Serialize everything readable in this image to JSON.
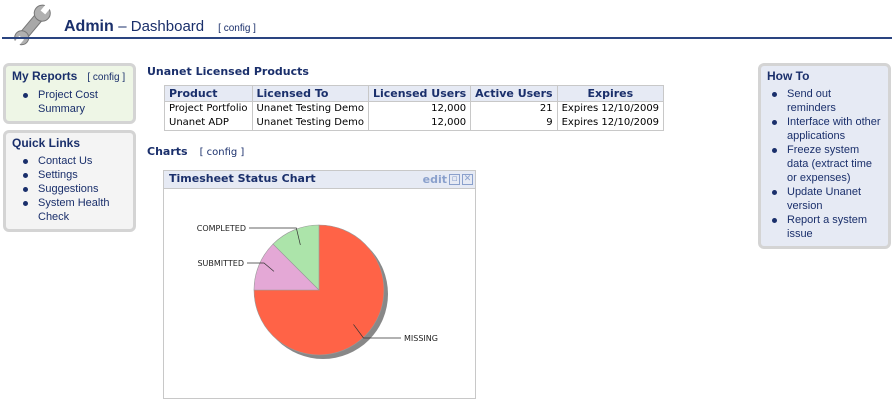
{
  "header": {
    "title_bold": "Admin",
    "title_rest": "– Dashboard",
    "config": "[ config ]"
  },
  "my_reports": {
    "title": "My Reports",
    "config": "[ config ]",
    "items": [
      "Project Cost Summary"
    ]
  },
  "quick_links": {
    "title": "Quick Links",
    "items": [
      "Contact Us",
      "Settings",
      "Suggestions",
      "System Health Check"
    ]
  },
  "how_to": {
    "title": "How To",
    "items": [
      "Send out reminders",
      "Interface with other applications",
      "Freeze system data (extract time or expenses)",
      "Update Unanet version",
      "Report a system issue"
    ]
  },
  "licensed": {
    "title": "Unanet Licensed Products",
    "columns": [
      "Product",
      "Licensed To",
      "Licensed Users",
      "Active Users",
      "Expires"
    ],
    "rows": [
      [
        "Project Portfolio",
        "Unanet Testing Demo",
        "12,000",
        "21",
        "Expires 12/10/2009"
      ],
      [
        "Unanet ADP",
        "Unanet Testing Demo",
        "12,000",
        "9",
        "Expires 12/10/2009"
      ]
    ]
  },
  "charts": {
    "title": "Charts",
    "config": "[ config ]",
    "panel_title": "Timesheet Status Chart",
    "edit": "edit"
  },
  "chart_data": {
    "type": "pie",
    "title": "Timesheet Status Chart",
    "slices": [
      {
        "label": "MISSING",
        "value": 75,
        "color": "#ff6347"
      },
      {
        "label": "SUBMITTED",
        "value": 12.5,
        "color": "#e4a8d6"
      },
      {
        "label": "COMPLETED",
        "value": 12.5,
        "color": "#ace4aa"
      }
    ]
  }
}
